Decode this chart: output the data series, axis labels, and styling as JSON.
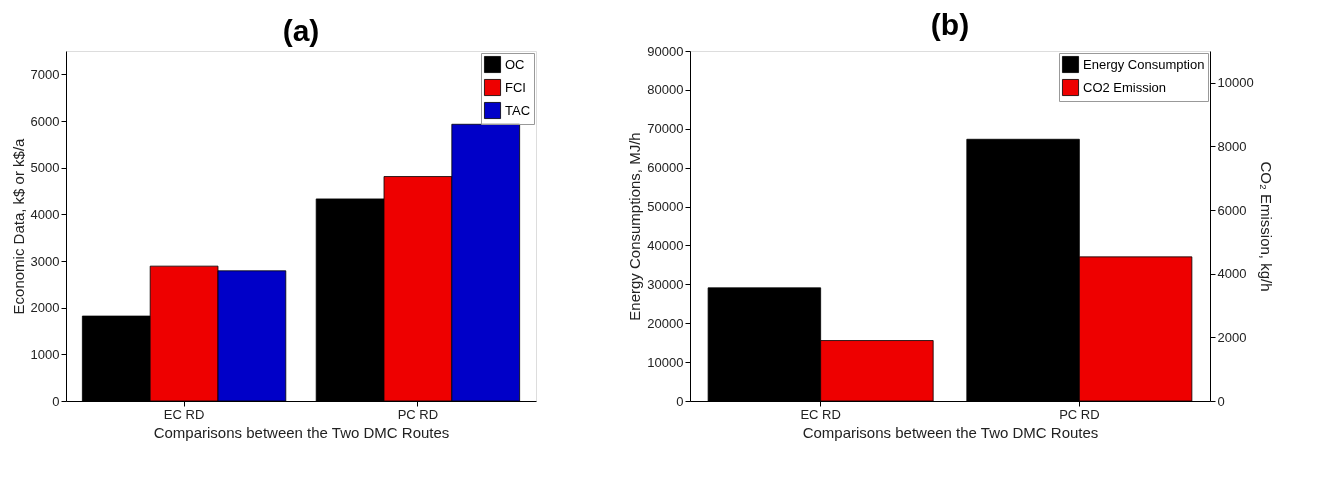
{
  "chart_data": [
    {
      "type": "bar",
      "title": "(a)",
      "xlabel": "Comparisons between the Two DMC Routes",
      "ylabel": "Economic Data, k$ or k$/a",
      "categories": [
        "EC RD",
        "PC RD"
      ],
      "series": [
        {
          "name": "OC",
          "color": "#000000",
          "values": [
            1820,
            4330
          ]
        },
        {
          "name": "FCI",
          "color": "#ee0000",
          "values": [
            2890,
            4810
          ]
        },
        {
          "name": "TAC",
          "color": "#0000c8",
          "values": [
            2790,
            5930
          ]
        }
      ],
      "ylim": [
        0,
        7500
      ],
      "yticks": [
        0,
        1000,
        2000,
        3000,
        4000,
        5000,
        6000,
        7000
      ],
      "grid": false,
      "legend": "top right"
    },
    {
      "type": "bar",
      "title": "(b)",
      "xlabel": "Comparisons between the Two DMC Routes",
      "ylabel": "Energy Consumptions, MJ/h",
      "y2label": "CO₂ Emission, kg/h",
      "categories": [
        "EC RD",
        "PC RD"
      ],
      "series": [
        {
          "name": "Energy Consumption",
          "color": "#000000",
          "values": [
            29100,
            67300
          ]
        },
        {
          "name": "CO2 Emission",
          "color": "#ee0000",
          "values": [
            1900,
            4530
          ],
          "axis": "y2"
        }
      ],
      "ylim": [
        0,
        90000
      ],
      "yticks": [
        0,
        10000,
        20000,
        30000,
        40000,
        50000,
        60000,
        70000,
        80000,
        90000
      ],
      "y2lim": [
        0,
        11000
      ],
      "y2ticks": [
        0,
        2000,
        4000,
        6000,
        8000,
        10000
      ],
      "grid": false,
      "legend": "top right"
    }
  ]
}
